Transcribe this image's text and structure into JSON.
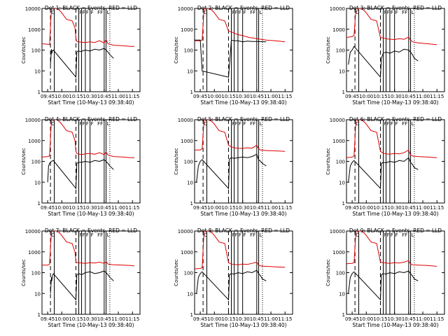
{
  "colors": {
    "events": "#000000",
    "lld": "#dd0000",
    "axes": "#000000"
  },
  "shared": {
    "xlabel": "Start Time (10-May-13 09:38:40)",
    "ylabel": "Counts/sec",
    "x_tick_labels": [
      "09:45",
      "10:00",
      "10:15",
      "10:30",
      "10:45",
      "11:00",
      "11:15"
    ],
    "y_tick_labels": [
      "1",
      "10",
      "100",
      "1000",
      "10000"
    ],
    "marker_labels": [
      "C",
      "F",
      "F",
      "F",
      "F",
      "F",
      "F",
      "L"
    ]
  },
  "chart_data": [
    {
      "type": "line",
      "title": "Det 1: BLACK = Events, RED = LLD",
      "x_domain_minutes": [
        -6,
        98
      ],
      "ylim": [
        1,
        10000
      ],
      "log_y": true,
      "series": [
        {
          "name": "LLD",
          "x": [
            -6,
            0,
            2,
            4,
            6,
            10,
            14,
            20,
            26,
            29,
            30,
            31,
            33,
            36,
            40,
            45,
            50,
            55,
            60,
            62,
            64,
            70,
            80,
            88,
            92
          ],
          "y": [
            200,
            190,
            180,
            10000,
            11000,
            10000,
            7000,
            3000,
            2500,
            1200,
            350,
            260,
            250,
            240,
            230,
            250,
            230,
            280,
            220,
            320,
            200,
            170,
            160,
            150,
            150
          ]
        },
        {
          "name": "Events",
          "x": [
            3,
            4,
            4.5,
            5,
            6,
            30,
            31,
            32,
            35,
            40,
            45,
            50,
            55,
            60,
            62,
            64,
            66,
            70
          ],
          "y": [
            20,
            110,
            70,
            90,
            100,
            5,
            80,
            90,
            85,
            100,
            90,
            110,
            100,
            120,
            100,
            80,
            60,
            40
          ]
        }
      ]
    },
    {
      "type": "line",
      "title": "Det 2: BLACK = Events, RED = LLD",
      "x_domain_minutes": [
        -6,
        98
      ],
      "ylim": [
        1,
        10000
      ],
      "log_y": true,
      "series": [
        {
          "name": "LLD",
          "x": [
            -6,
            0,
            2,
            4,
            6,
            10,
            14,
            20,
            26,
            30,
            33,
            36,
            40,
            45,
            48,
            52,
            56,
            60,
            70,
            80,
            90
          ],
          "y": [
            280,
            280,
            300,
            10000,
            11000,
            10000,
            7000,
            3000,
            2500,
            800,
            750,
            650,
            550,
            500,
            450,
            400,
            380,
            350,
            300,
            280,
            250
          ]
        },
        {
          "name": "Events",
          "x": [
            -6,
            0,
            2,
            30,
            33,
            36,
            40,
            45,
            50,
            55,
            60,
            70
          ],
          "y": [
            300,
            300,
            10,
            5,
            300,
            280,
            280,
            250,
            270,
            260,
            260,
            250
          ]
        }
      ]
    },
    {
      "type": "line",
      "title": "Det 3: BLACK = Events, RED = LLD",
      "x_domain_minutes": [
        -6,
        98
      ],
      "ylim": [
        1,
        10000
      ],
      "log_y": true,
      "series": [
        {
          "name": "LLD",
          "x": [
            -6,
            0,
            2,
            4,
            6,
            10,
            14,
            20,
            26,
            30,
            33,
            36,
            40,
            45,
            50,
            55,
            60,
            62,
            64,
            70,
            80,
            90
          ],
          "y": [
            400,
            450,
            500,
            10000,
            11000,
            10000,
            7000,
            3000,
            2500,
            400,
            380,
            350,
            330,
            320,
            350,
            330,
            420,
            300,
            250,
            220,
            200,
            180
          ]
        },
        {
          "name": "Events",
          "x": [
            -4,
            -2,
            0,
            1,
            2,
            30,
            31,
            33,
            36,
            40,
            45,
            50,
            55,
            60,
            62,
            64,
            66,
            70
          ],
          "y": [
            20,
            80,
            100,
            120,
            150,
            5,
            40,
            70,
            80,
            70,
            90,
            80,
            110,
            100,
            80,
            60,
            40,
            30
          ]
        }
      ]
    },
    {
      "type": "line",
      "title": "Det 4: BLACK = Events, RED = LLD",
      "x_domain_minutes": [
        -6,
        98
      ],
      "ylim": [
        1,
        10000
      ],
      "log_y": true,
      "series": [
        {
          "name": "LLD",
          "x": [
            -6,
            0,
            2,
            4,
            6,
            10,
            14,
            20,
            26,
            29,
            30,
            31,
            33,
            36,
            40,
            45,
            50,
            55,
            60,
            62,
            64,
            70,
            80,
            88,
            92
          ],
          "y": [
            160,
            170,
            180,
            10000,
            11000,
            10000,
            7000,
            3000,
            2500,
            1000,
            300,
            240,
            220,
            210,
            230,
            240,
            220,
            260,
            210,
            280,
            200,
            170,
            160,
            150,
            150
          ]
        },
        {
          "name": "Events",
          "x": [
            0,
            1,
            2,
            4,
            6,
            30,
            31,
            33,
            36,
            40,
            45,
            50,
            55,
            60,
            62,
            64,
            66,
            70
          ],
          "y": [
            10,
            60,
            80,
            100,
            110,
            5,
            80,
            90,
            90,
            100,
            90,
            110,
            100,
            120,
            100,
            80,
            60,
            40
          ]
        }
      ]
    },
    {
      "type": "line",
      "title": "Det 5: BLACK = Events, RED = LLD",
      "x_domain_minutes": [
        -6,
        98
      ],
      "ylim": [
        1,
        10000
      ],
      "log_y": true,
      "series": [
        {
          "name": "LLD",
          "x": [
            -6,
            0,
            2,
            4,
            6,
            10,
            14,
            20,
            26,
            30,
            33,
            36,
            40,
            45,
            50,
            55,
            60,
            62,
            64,
            70,
            80,
            90
          ],
          "y": [
            350,
            350,
            400,
            10000,
            11000,
            10000,
            7000,
            3000,
            2500,
            600,
            500,
            450,
            430,
            420,
            450,
            430,
            600,
            400,
            350,
            330,
            320,
            300
          ]
        },
        {
          "name": "Events",
          "x": [
            -4,
            -2,
            0,
            1,
            2,
            30,
            31,
            33,
            36,
            40,
            45,
            50,
            55,
            60,
            62,
            64,
            66,
            70
          ],
          "y": [
            10,
            60,
            100,
            110,
            120,
            5,
            130,
            150,
            140,
            150,
            160,
            150,
            170,
            220,
            120,
            100,
            80,
            60
          ]
        }
      ]
    },
    {
      "type": "line",
      "title": "Det 6: BLACK = Events, RED = LLD",
      "x_domain_minutes": [
        -6,
        98
      ],
      "ylim": [
        1,
        10000
      ],
      "log_y": true,
      "series": [
        {
          "name": "LLD",
          "x": [
            -6,
            0,
            2,
            4,
            6,
            10,
            14,
            20,
            26,
            30,
            33,
            36,
            40,
            45,
            50,
            55,
            60,
            62,
            64,
            70,
            80,
            90
          ],
          "y": [
            150,
            160,
            180,
            10000,
            11000,
            10000,
            7000,
            3000,
            2500,
            300,
            250,
            230,
            220,
            240,
            230,
            260,
            350,
            200,
            180,
            170,
            160,
            150
          ]
        },
        {
          "name": "Events",
          "x": [
            -4,
            -2,
            0,
            1,
            2,
            30,
            31,
            33,
            36,
            40,
            45,
            50,
            55,
            60,
            62,
            64,
            66,
            70
          ],
          "y": [
            10,
            60,
            90,
            100,
            110,
            5,
            80,
            90,
            85,
            100,
            90,
            110,
            100,
            150,
            90,
            70,
            50,
            40
          ]
        }
      ]
    },
    {
      "type": "line",
      "title": "Det 7: BLACK = Events, RED = LLD",
      "x_domain_minutes": [
        -6,
        98
      ],
      "ylim": [
        1,
        10000
      ],
      "log_y": true,
      "series": [
        {
          "name": "LLD",
          "x": [
            -6,
            0,
            2,
            4,
            6,
            10,
            14,
            20,
            26,
            29,
            30,
            31,
            33,
            36,
            40,
            45,
            50,
            55,
            60,
            62,
            64,
            70,
            80,
            88,
            92
          ],
          "y": [
            230,
            230,
            250,
            10000,
            11000,
            10000,
            7000,
            3000,
            2500,
            1000,
            330,
            300,
            300,
            290,
            280,
            300,
            290,
            320,
            280,
            340,
            260,
            240,
            230,
            220,
            210
          ]
        },
        {
          "name": "Events",
          "x": [
            3,
            4,
            4.5,
            5,
            6,
            30,
            31,
            33,
            36,
            40,
            45,
            50,
            55,
            60,
            62,
            64,
            66,
            70
          ],
          "y": [
            10,
            60,
            40,
            70,
            90,
            5,
            80,
            90,
            80,
            100,
            110,
            90,
            100,
            120,
            100,
            80,
            60,
            40
          ]
        }
      ]
    },
    {
      "type": "line",
      "title": "Det 8: BLACK = Events, RED = LLD",
      "x_domain_minutes": [
        -6,
        98
      ],
      "ylim": [
        1,
        10000
      ],
      "log_y": true,
      "series": [
        {
          "name": "LLD",
          "x": [
            -6,
            0,
            2,
            4,
            6,
            10,
            14,
            20,
            26,
            30,
            33,
            36,
            40,
            45,
            50,
            55,
            60,
            62,
            64,
            70,
            80,
            90
          ],
          "y": [
            150,
            160,
            170,
            10000,
            11000,
            10000,
            7000,
            3000,
            2500,
            300,
            260,
            250,
            240,
            260,
            250,
            280,
            320,
            230,
            210,
            200,
            190,
            180
          ]
        },
        {
          "name": "Events",
          "x": [
            -4,
            -2,
            0,
            1,
            2,
            30,
            31,
            33,
            36,
            40,
            45,
            50,
            55,
            60,
            62,
            64,
            66,
            70
          ],
          "y": [
            10,
            60,
            90,
            100,
            110,
            5,
            80,
            90,
            85,
            100,
            90,
            110,
            100,
            130,
            90,
            70,
            50,
            40
          ]
        }
      ]
    },
    {
      "type": "line",
      "title": "Det 9: BLACK = Events, RED = LLD",
      "x_domain_minutes": [
        -6,
        98
      ],
      "ylim": [
        1,
        10000
      ],
      "log_y": true,
      "series": [
        {
          "name": "LLD",
          "x": [
            -6,
            0,
            2,
            4,
            6,
            10,
            14,
            20,
            26,
            30,
            33,
            36,
            40,
            45,
            50,
            55,
            60,
            62,
            64,
            70,
            80,
            90
          ],
          "y": [
            270,
            280,
            300,
            10000,
            11000,
            10000,
            7000,
            3000,
            2500,
            320,
            300,
            290,
            280,
            300,
            290,
            320,
            380,
            260,
            240,
            230,
            220,
            200
          ]
        },
        {
          "name": "Events",
          "x": [
            -4,
            -2,
            0,
            1,
            2,
            30,
            31,
            33,
            36,
            40,
            45,
            50,
            55,
            60,
            62,
            64,
            66,
            70
          ],
          "y": [
            10,
            60,
            90,
            100,
            110,
            5,
            80,
            90,
            85,
            100,
            90,
            110,
            100,
            120,
            90,
            70,
            50,
            40
          ]
        }
      ]
    }
  ]
}
